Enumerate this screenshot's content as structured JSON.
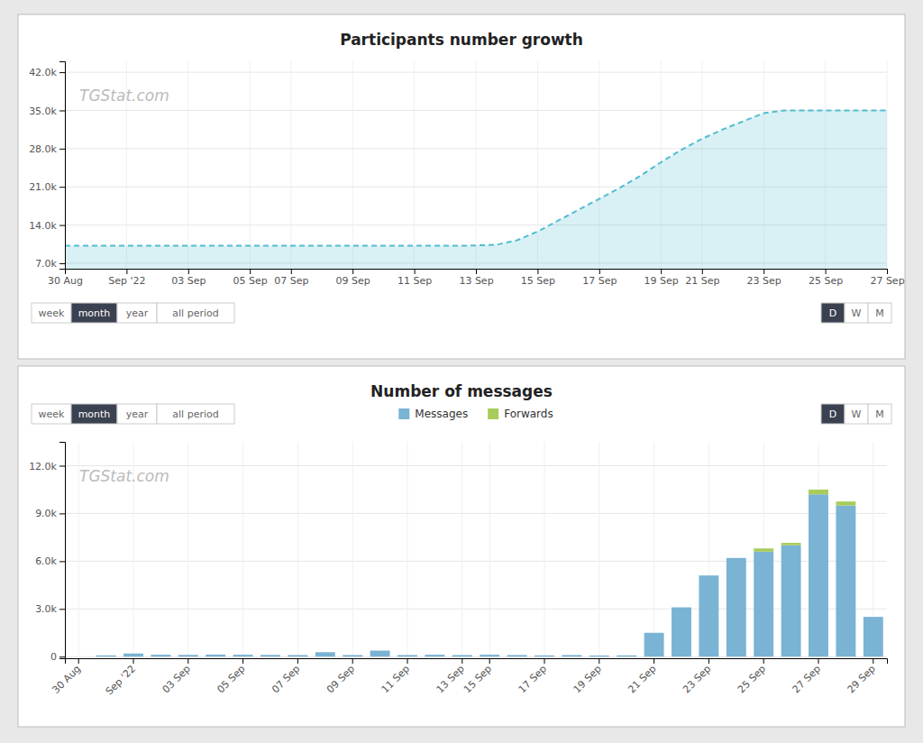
{
  "chart_data": [
    {
      "type": "area",
      "title": "Participants number growth",
      "categories": [
        "30 Aug",
        null,
        null,
        "Sep '22",
        null,
        null,
        "03 Sep",
        null,
        null,
        "05 Sep",
        null,
        "07 Sep",
        null,
        null,
        "09 Sep",
        null,
        null,
        "11 Sep",
        null,
        null,
        "13 Sep",
        null,
        null,
        "15 Sep",
        null,
        null,
        "17 Sep",
        null,
        null,
        "19 Sep",
        null,
        "21 Sep",
        null,
        null,
        "23 Sep",
        null,
        null,
        "25 Sep",
        null,
        null,
        "27 Sep"
      ],
      "values": [
        10200,
        10200,
        10200,
        10200,
        10200,
        10200,
        10200,
        10200,
        10200,
        10200,
        10200,
        10200,
        10200,
        10200,
        10200,
        10200,
        10200,
        10200,
        10200,
        10200,
        10250,
        10400,
        11200,
        12800,
        14800,
        16800,
        18800,
        20800,
        23000,
        25500,
        27800,
        29800,
        31500,
        33000,
        34500,
        35000,
        35000,
        35000,
        35000,
        35000,
        35000
      ],
      "color": "#52bdd0",
      "line_style": "dashed",
      "ylim": [
        6000,
        44000
      ],
      "yticks": [
        {
          "value": 7000,
          "label": "7.0k"
        },
        {
          "value": 14000,
          "label": "14.0k"
        },
        {
          "value": 21000,
          "label": "21.0k"
        },
        {
          "value": 28000,
          "label": "28.0k"
        },
        {
          "value": 35000,
          "label": "35.0k"
        },
        {
          "value": 42000,
          "label": "42.0k"
        }
      ],
      "grid": true,
      "annotations": [
        "TGStat.com"
      ]
    },
    {
      "type": "bar",
      "title": "Number of messages",
      "categories": [
        "30 Aug",
        null,
        "Sep '22",
        null,
        "03 Sep",
        null,
        "05 Sep",
        null,
        "07 Sep",
        null,
        "09 Sep",
        null,
        "11 Sep",
        null,
        "13 Sep",
        "15 Sep",
        null,
        "17 Sep",
        null,
        "19 Sep",
        null,
        "21 Sep",
        null,
        "23 Sep",
        null,
        "25 Sep",
        null,
        "27 Sep",
        null,
        "29 Sep"
      ],
      "series": [
        {
          "name": "Messages",
          "color": "#7ab3d4",
          "values": [
            0,
            80,
            200,
            120,
            110,
            130,
            120,
            110,
            100,
            280,
            100,
            380,
            100,
            120,
            100,
            120,
            100,
            80,
            100,
            70,
            80,
            1500,
            3100,
            5100,
            6200,
            6600,
            7000,
            10200,
            9500,
            2500
          ]
        },
        {
          "name": "Forwards",
          "color": "#a8cc5a",
          "values": [
            0,
            0,
            0,
            0,
            0,
            0,
            0,
            0,
            0,
            0,
            0,
            0,
            0,
            0,
            0,
            0,
            0,
            0,
            0,
            0,
            0,
            0,
            0,
            0,
            0,
            200,
            150,
            300,
            250,
            0
          ]
        }
      ],
      "stacked": true,
      "ylim": [
        -100,
        13500
      ],
      "yticks": [
        0,
        {
          "value": 3000,
          "label": "3.0k"
        },
        {
          "value": 6000,
          "label": "6.0k"
        },
        {
          "value": 9000,
          "label": "9.0k"
        },
        {
          "value": 12000,
          "label": "12.0k"
        }
      ],
      "grid": true,
      "legend": "top",
      "annotations": [
        "TGStat.com"
      ]
    }
  ],
  "controls": {
    "tabs": [
      "week",
      "month",
      "year",
      "all period"
    ],
    "active_tab": "month",
    "periods": [
      "D",
      "W",
      "M"
    ],
    "active_period": "D"
  }
}
